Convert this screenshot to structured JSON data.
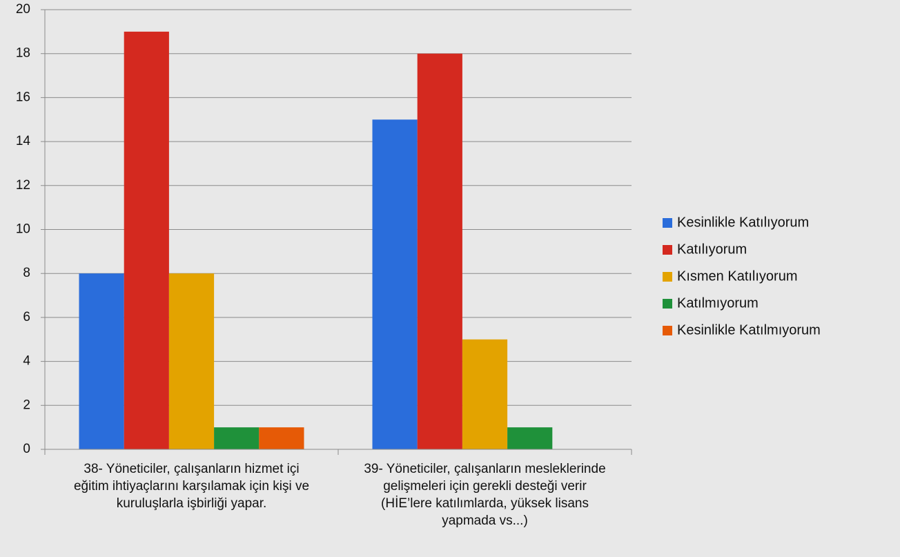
{
  "chart_data": {
    "type": "bar",
    "categories": [
      "38- Yöneticiler, çalışanların hizmet içi eğitim ihtiyaçlarını karşılamak için kişi ve kuruluşlarla işbirliği yapar.",
      "39- Yöneticiler, çalışanların mesleklerinde gelişmeleri için gerekli desteği verir (HİE’lere katılımlarda, yüksek lisans yapmada vs...)"
    ],
    "series": [
      {
        "name": "Kesinlikle Katılıyorum",
        "color": "#2a6ddb",
        "values": [
          8,
          15
        ]
      },
      {
        "name": "Katılıyorum",
        "color": "#d4291f",
        "values": [
          19,
          18
        ]
      },
      {
        "name": "Kısmen Katılıyorum",
        "color": "#e3a300",
        "values": [
          8,
          5
        ]
      },
      {
        "name": "Katılmıyorum",
        "color": "#1f913a",
        "values": [
          1,
          1
        ]
      },
      {
        "name": "Kesinlikle Katılmıyorum",
        "color": "#e65a06",
        "values": [
          1,
          0
        ]
      }
    ],
    "ylim": [
      0,
      20
    ],
    "yticks": [
      0,
      2,
      4,
      6,
      8,
      10,
      12,
      14,
      16,
      18,
      20
    ],
    "grid": true,
    "legend": "right"
  }
}
